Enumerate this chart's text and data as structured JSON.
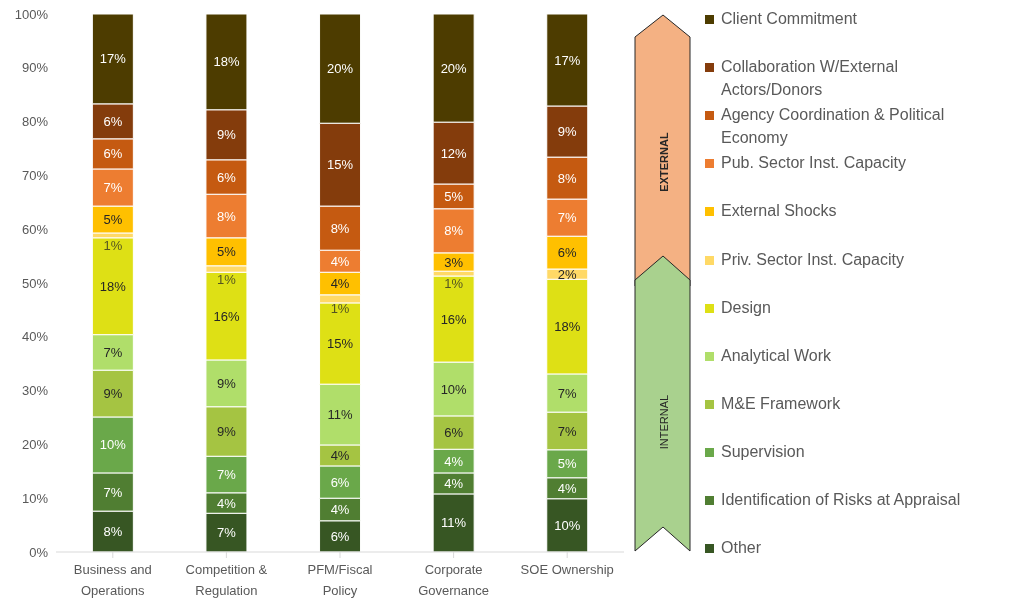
{
  "chart_data": {
    "type": "bar",
    "stacked": true,
    "categories": [
      "Business and Operations",
      "Competition & Regulation",
      "PFM/Fiscal Policy",
      "Corporate Governance",
      "SOE Ownership"
    ],
    "series": [
      {
        "name": "Other",
        "color": "#375623",
        "values": [
          7.6,
          7.2,
          5.8,
          10.8,
          9.9
        ],
        "value_labels": [
          "8%",
          "7%",
          "6%",
          "11%",
          "10%"
        ]
      },
      {
        "name": "Identification of Risks at Appraisal",
        "color": "#507e32",
        "values": [
          7.1,
          3.8,
          4.2,
          3.9,
          3.9
        ],
        "value_labels": [
          "7%",
          "4%",
          "4%",
          "4%",
          "4%"
        ]
      },
      {
        "name": "Supervision",
        "color": "#6aa84a",
        "values": [
          10.4,
          6.8,
          6.0,
          4.4,
          5.2
        ],
        "value_labels": [
          "10%",
          "7%",
          "6%",
          "4%",
          "5%"
        ]
      },
      {
        "name": "M&E Framework",
        "color": "#a5c442",
        "values": [
          8.7,
          9.2,
          3.9,
          6.2,
          7.0
        ],
        "value_labels": [
          "9%",
          "9%",
          "4%",
          "6%",
          "7%"
        ]
      },
      {
        "name": "Analytical Work",
        "color": "#b0de6a",
        "values": [
          6.6,
          8.7,
          11.3,
          10.0,
          7.1
        ],
        "value_labels": [
          "7%",
          "9%",
          "11%",
          "10%",
          "7%"
        ]
      },
      {
        "name": "Design",
        "color": "#dee015",
        "values": [
          18.0,
          16.3,
          15.1,
          16.0,
          17.6
        ],
        "value_labels": [
          "18%",
          "16%",
          "15%",
          "16%",
          "18%"
        ]
      },
      {
        "name": "Priv. Sector Inst. Capacity",
        "color": "#ffd966",
        "values": [
          0.9,
          1.2,
          1.5,
          0.9,
          1.9
        ],
        "value_labels": [
          "1%",
          "1%",
          "1%",
          "1%",
          "2%"
        ]
      },
      {
        "name": "External Shocks",
        "color": "#ffc000",
        "values": [
          5.0,
          5.2,
          4.2,
          3.4,
          6.1
        ],
        "value_labels": [
          "5%",
          "5%",
          "4%",
          "3%",
          "6%"
        ]
      },
      {
        "name": "Pub. Sector Inst. Capacity",
        "color": "#ed7d31",
        "values": [
          6.9,
          8.1,
          4.1,
          8.2,
          6.9
        ],
        "value_labels": [
          "7%",
          "8%",
          "4%",
          "8%",
          "7%"
        ]
      },
      {
        "name": "Agency Coordination & Political Economy",
        "color": "#c55a11",
        "values": [
          5.6,
          6.4,
          8.2,
          4.6,
          7.8
        ],
        "value_labels": [
          "6%",
          "6%",
          "8%",
          "5%",
          "8%"
        ]
      },
      {
        "name": "Collaboration W/External Actors/Donors",
        "color": "#843c0c",
        "values": [
          6.5,
          9.3,
          15.4,
          11.5,
          9.5
        ],
        "value_labels": [
          "6%",
          "9%",
          "15%",
          "12%",
          "9%"
        ]
      },
      {
        "name": "Client Commitment",
        "color": "#4d3c00",
        "values": [
          16.7,
          17.8,
          20.3,
          20.1,
          17.1
        ],
        "value_labels": [
          "17%",
          "18%",
          "20%",
          "20%",
          "17%"
        ]
      }
    ],
    "ylim": [
      0,
      100
    ],
    "yticks": [
      {
        "value": 0,
        "label": "0%"
      },
      {
        "value": 10,
        "label": "10%"
      },
      {
        "value": 20,
        "label": "20%"
      },
      {
        "value": 30,
        "label": "30%"
      },
      {
        "value": 40,
        "label": "40%"
      },
      {
        "value": 50,
        "label": "50%"
      },
      {
        "value": 60,
        "label": "60%"
      },
      {
        "value": 70,
        "label": "70%"
      },
      {
        "value": 80,
        "label": "80%"
      },
      {
        "value": 90,
        "label": "90%"
      },
      {
        "value": 100,
        "label": "100%"
      }
    ],
    "grid": false,
    "legend": "right",
    "annotations": [
      "EXTERNAL",
      "INTERNAL"
    ]
  }
}
